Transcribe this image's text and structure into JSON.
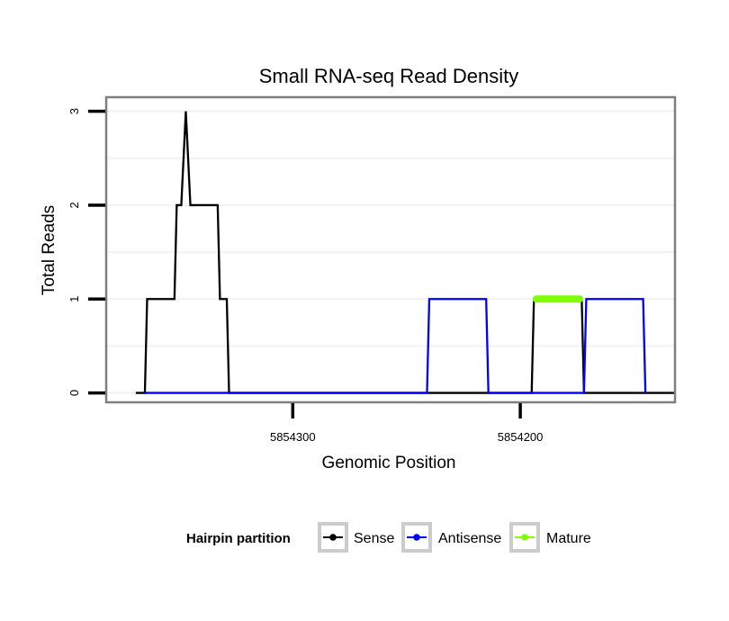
{
  "chart_data": {
    "type": "line",
    "title": "Small RNA-seq Read Density",
    "xlabel": "Genomic Position",
    "ylabel": "Total Reads",
    "x_reversed": true,
    "xlim": [
      5854382,
      5854132
    ],
    "ylim": [
      -0.1,
      3.15
    ],
    "x_ticks": [
      {
        "value": 5854300,
        "label": "5854300"
      },
      {
        "value": 5854200,
        "label": "5854200"
      }
    ],
    "y_ticks": [
      {
        "value": 0,
        "label": "0"
      },
      {
        "value": 1,
        "label": "1"
      },
      {
        "value": 2,
        "label": "2"
      },
      {
        "value": 3,
        "label": "3"
      }
    ],
    "grid": true,
    "legend": {
      "title": "Hairpin partition",
      "position": "bottom"
    },
    "series": [
      {
        "name": "Sense",
        "color": "#000000",
        "points": [
          [
            5854369,
            0
          ],
          [
            5854365,
            0
          ],
          [
            5854364,
            1
          ],
          [
            5854352,
            1
          ],
          [
            5854351,
            2
          ],
          [
            5854349,
            2
          ],
          [
            5854347,
            3
          ],
          [
            5854345,
            2
          ],
          [
            5854333,
            2
          ],
          [
            5854332,
            1
          ],
          [
            5854329,
            1
          ],
          [
            5854328,
            0
          ],
          [
            5854195,
            0
          ],
          [
            5854194,
            1
          ],
          [
            5854173,
            1
          ],
          [
            5854172,
            0
          ],
          [
            5854132,
            0
          ]
        ]
      },
      {
        "name": "Antisense",
        "color": "#0000FF",
        "points": [
          [
            5854365,
            0
          ],
          [
            5854241,
            0
          ],
          [
            5854240,
            1
          ],
          [
            5854215,
            1
          ],
          [
            5854214,
            0
          ],
          [
            5854172,
            0
          ],
          [
            5854171,
            1
          ],
          [
            5854146,
            1
          ],
          [
            5854145,
            0
          ]
        ]
      },
      {
        "name": "Mature",
        "color": "#7FFF00",
        "points": [
          [
            5854193,
            1
          ],
          [
            5854174,
            1
          ]
        ]
      }
    ]
  }
}
